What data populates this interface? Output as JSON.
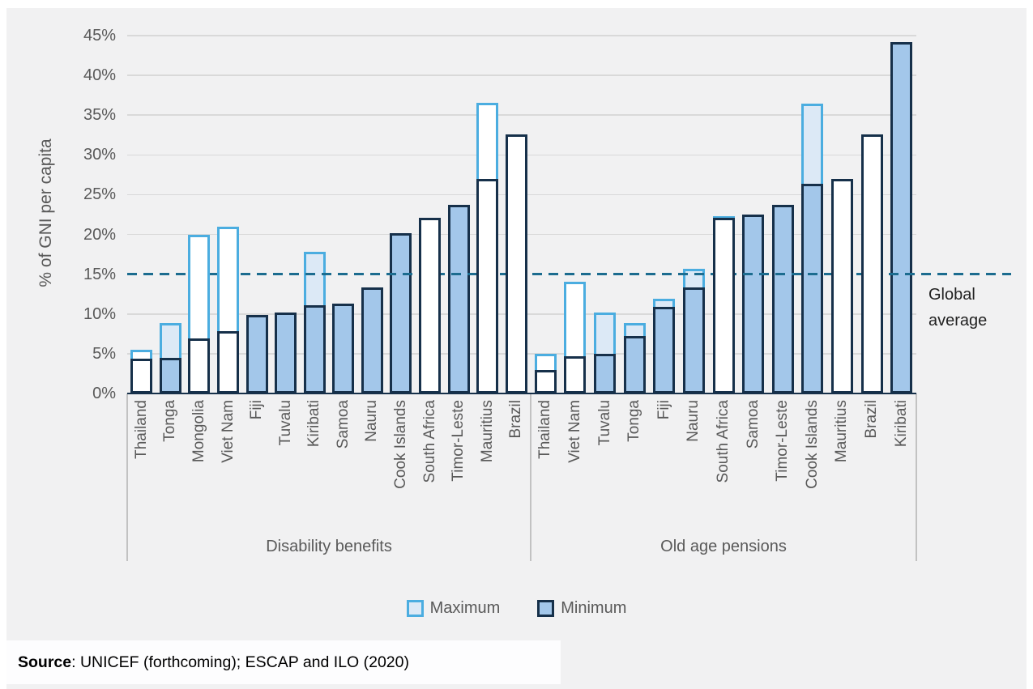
{
  "ui": {
    "y_axis_title": "% of GNI per capita",
    "tick_labels": [
      "45%",
      "40%",
      "35%",
      "30%",
      "25%",
      "20%",
      "15%",
      "10%",
      "5%",
      "0%"
    ],
    "legend": {
      "maximum": "Maximum",
      "minimum": "Minimum"
    },
    "annotation": {
      "line1": "Global",
      "line2": "average"
    },
    "source": {
      "prefix": "Source",
      "rest": ": UNICEF (forthcoming); ESCAP and ILO (2020)"
    }
  },
  "colors": {
    "panel_bg": "#f1f1f2",
    "gridline": "#d9d9d9",
    "axis_text": "#595959",
    "max_border": "#4badе0",
    "maximum_border": "#4bade0",
    "maximum_pale_fill": "#dce9f6",
    "minimum_border": "#16304a",
    "minimum_blue_fill": "#a3c7ea",
    "white_fill": "#ffffff",
    "global_average_line": "#1c6c8f"
  },
  "chart_data": {
    "type": "bar",
    "ylabel": "% of GNI per capita",
    "ylim": [
      0,
      45
    ],
    "ytick_step": 5,
    "grid": true,
    "legend_position": "bottom",
    "series": [
      "Maximum",
      "Minimum"
    ],
    "global_average": 15,
    "groups": [
      {
        "label": "Disability benefits",
        "bars": [
          {
            "country": "Thailand",
            "maximum": 5.5,
            "minimum": 4.4,
            "max_fill": "white",
            "min_fill": "white"
          },
          {
            "country": "Tonga",
            "maximum": 8.9,
            "minimum": 4.5,
            "max_fill": "pale",
            "min_fill": "blue"
          },
          {
            "country": "Mongolia",
            "maximum": 20.0,
            "minimum": 6.9,
            "max_fill": "white",
            "min_fill": "white"
          },
          {
            "country": "Viet Nam",
            "maximum": 21.0,
            "minimum": 7.8,
            "max_fill": "white",
            "min_fill": "white"
          },
          {
            "country": "Fiji",
            "maximum": null,
            "minimum": 9.9,
            "max_fill": null,
            "min_fill": "blue"
          },
          {
            "country": "Tuvalu",
            "maximum": null,
            "minimum": 10.2,
            "max_fill": null,
            "min_fill": "blue"
          },
          {
            "country": "Kiribati",
            "maximum": 17.8,
            "minimum": 11.1,
            "max_fill": "pale",
            "min_fill": "blue"
          },
          {
            "country": "Samoa",
            "maximum": null,
            "minimum": 11.3,
            "max_fill": null,
            "min_fill": "blue"
          },
          {
            "country": "Nauru",
            "maximum": null,
            "minimum": 13.3,
            "max_fill": null,
            "min_fill": "blue"
          },
          {
            "country": "Cook Islands",
            "maximum": null,
            "minimum": 20.2,
            "max_fill": null,
            "min_fill": "blue"
          },
          {
            "country": "South Africa",
            "maximum": null,
            "minimum": 22.1,
            "max_fill": null,
            "min_fill": "white"
          },
          {
            "country": "Timor-Leste",
            "maximum": null,
            "minimum": 23.7,
            "max_fill": null,
            "min_fill": "blue"
          },
          {
            "country": "Mauritius",
            "maximum": 36.5,
            "minimum": 27.0,
            "max_fill": "white",
            "min_fill": "white"
          },
          {
            "country": "Brazil",
            "maximum": null,
            "minimum": 32.6,
            "max_fill": null,
            "min_fill": "white"
          }
        ]
      },
      {
        "label": "Old age pensions",
        "bars": [
          {
            "country": "Thailand",
            "maximum": 5.0,
            "minimum": 3.0,
            "max_fill": "white",
            "min_fill": "white"
          },
          {
            "country": "Viet Nam",
            "maximum": 14.1,
            "minimum": 4.7,
            "max_fill": "white",
            "min_fill": "white"
          },
          {
            "country": "Tuvalu",
            "maximum": 10.2,
            "minimum": 5.0,
            "max_fill": "pale",
            "min_fill": "blue"
          },
          {
            "country": "Tonga",
            "maximum": 8.9,
            "minimum": 7.2,
            "max_fill": "pale",
            "min_fill": "blue"
          },
          {
            "country": "Fiji",
            "maximum": 11.9,
            "minimum": 10.9,
            "max_fill": "pale",
            "min_fill": "blue"
          },
          {
            "country": "Nauru",
            "maximum": 15.7,
            "minimum": 13.3,
            "max_fill": "pale",
            "min_fill": "blue"
          },
          {
            "country": "South Africa",
            "maximum": 22.3,
            "minimum": 22.1,
            "max_fill": "white",
            "min_fill": "white"
          },
          {
            "country": "Samoa",
            "maximum": null,
            "minimum": 22.5,
            "max_fill": null,
            "min_fill": "blue"
          },
          {
            "country": "Timor-Leste",
            "maximum": null,
            "minimum": 23.7,
            "max_fill": null,
            "min_fill": "blue"
          },
          {
            "country": "Cook Islands",
            "maximum": 36.4,
            "minimum": 26.4,
            "max_fill": "pale",
            "min_fill": "blue"
          },
          {
            "country": "Mauritius",
            "maximum": null,
            "minimum": 27.0,
            "max_fill": null,
            "min_fill": "white"
          },
          {
            "country": "Brazil",
            "maximum": null,
            "minimum": 32.6,
            "max_fill": null,
            "min_fill": "white"
          },
          {
            "country": "Kiribati",
            "maximum": null,
            "minimum": 44.2,
            "max_fill": null,
            "min_fill": "blue"
          }
        ]
      }
    ]
  }
}
